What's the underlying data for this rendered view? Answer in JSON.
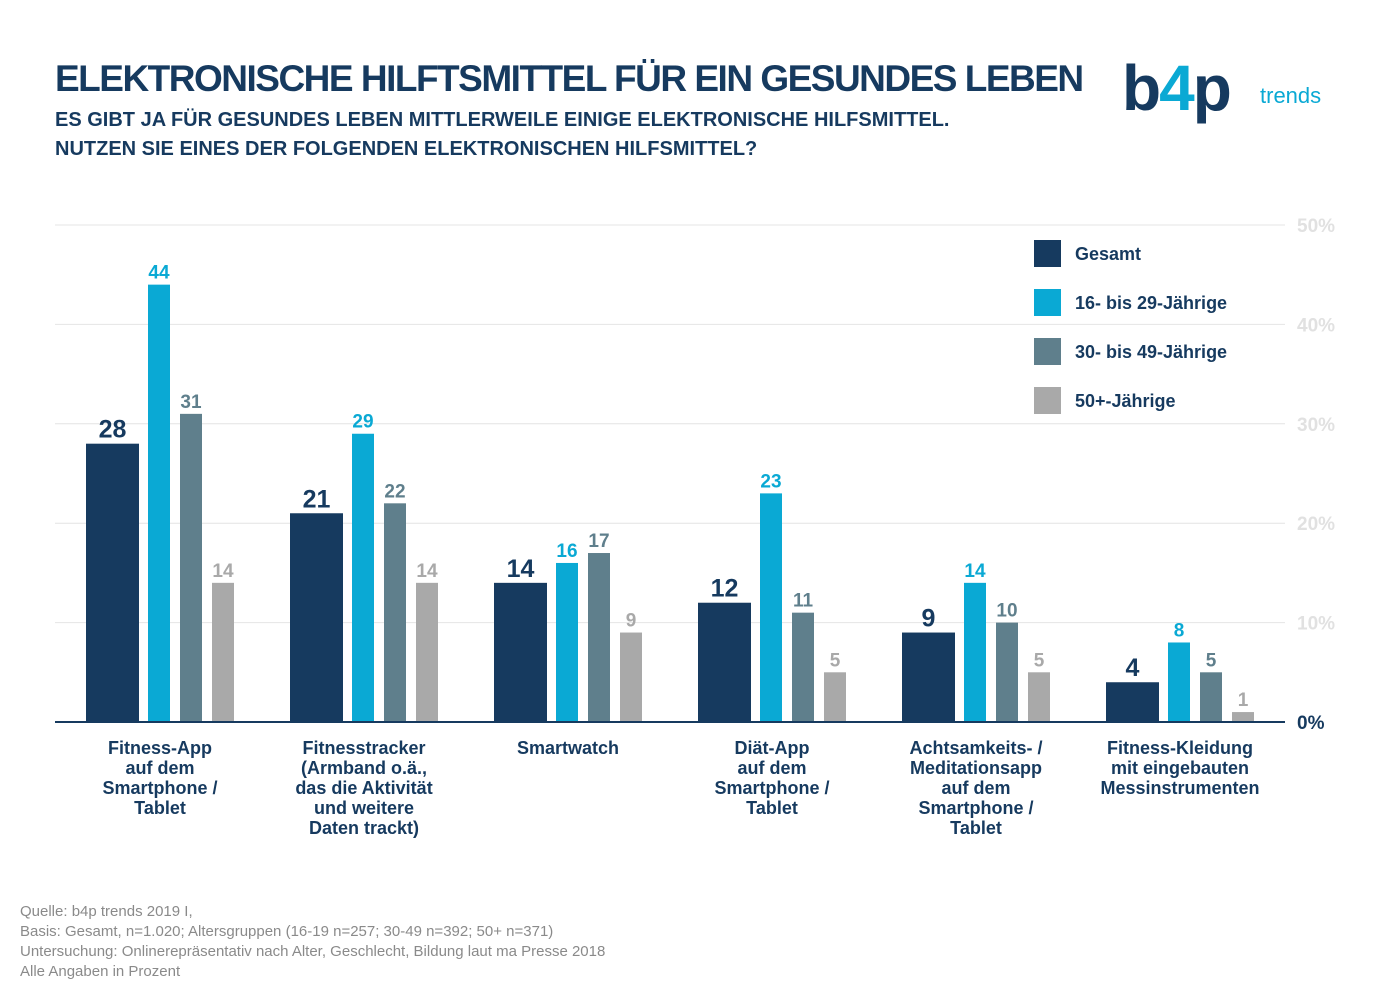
{
  "title": "ELEKTRONISCHE HILFTSMITTEL FÜR EIN GESUNDES LEBEN",
  "subtitle_lines": [
    "ES GIBT JA FÜR GESUNDES LEBEN MITTLERWEILE EINIGE ELEKTRONISCHE HILFSMITTEL.",
    "NUTZEN SIE EINES DER FOLGENDEN ELEKTRONISCHEN HILFSMITTEL?"
  ],
  "logo": {
    "word_main": "b",
    "word_four": "4",
    "word_end": "p",
    "tag": "trends"
  },
  "chart_data": {
    "type": "bar",
    "title": "",
    "categories": [
      [
        "Fitness-App",
        "auf dem",
        "Smartphone /",
        "Tablet"
      ],
      [
        "Fitnesstracker",
        "(Armband o.ä.,",
        "das die Aktivität",
        "und weitere",
        "Daten trackt)"
      ],
      [
        "Smartwatch"
      ],
      [
        "Diät-App",
        "auf dem",
        "Smartphone /",
        "Tablet"
      ],
      [
        "Achtsamkeits- /",
        "Meditationsapp",
        "auf dem",
        "Smartphone /",
        "Tablet"
      ],
      [
        "Fitness-Kleidung",
        "mit eingebauten",
        "Messinstrumenten"
      ]
    ],
    "series": [
      {
        "name": "Gesamt",
        "color": "#163a5f",
        "values": [
          28,
          21,
          14,
          12,
          9,
          4
        ]
      },
      {
        "name": "16- bis 29-Jährige",
        "color": "#0aa9d4",
        "values": [
          44,
          29,
          16,
          23,
          14,
          8
        ]
      },
      {
        "name": "30- bis 49-Jährige",
        "color": "#5f7f8c",
        "values": [
          31,
          22,
          17,
          11,
          10,
          5
        ]
      },
      {
        "name": "50+-Jährige",
        "color": "#a9a9a9",
        "values": [
          14,
          14,
          9,
          5,
          5,
          1
        ]
      }
    ],
    "ylim": [
      0,
      50
    ],
    "yticks": [
      "0%",
      "10%",
      "20%",
      "30%",
      "40%",
      "50%"
    ],
    "grid": true,
    "legend_position": "top-right"
  },
  "footnotes": [
    "Quelle: b4p trends 2019 I,",
    "Basis: Gesamt, n=1.020; Altersgruppen (16-19 n=257; 30-49 n=392; 50+ n=371)",
    "Untersuchung: Onlinerepräsentativ nach Alter, Geschlecht, Bildung laut ma Presse 2018",
    "Alle Angaben in Prozent"
  ]
}
